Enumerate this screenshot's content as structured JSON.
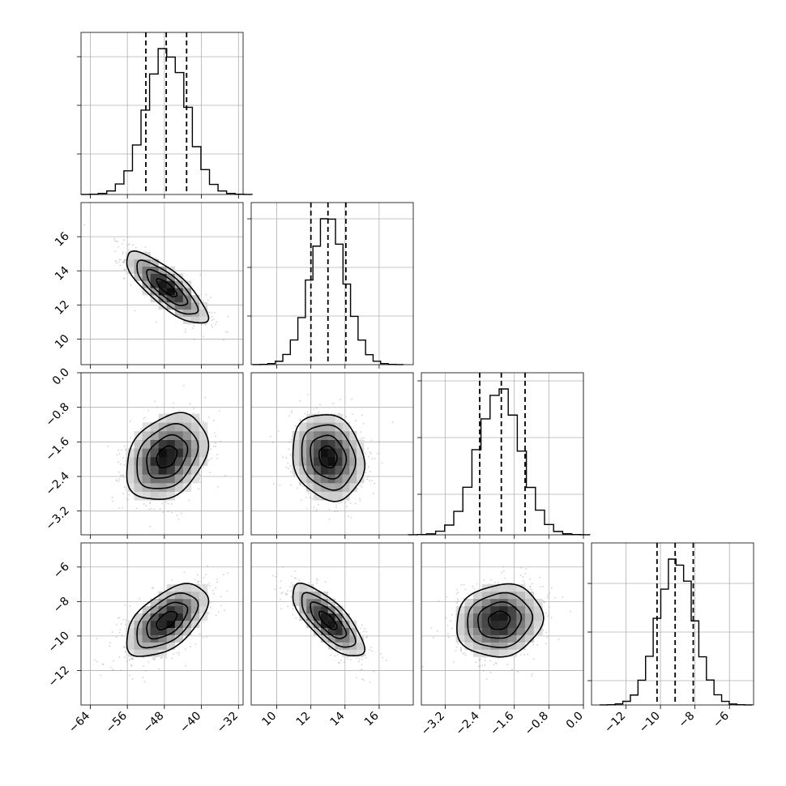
{
  "chart_data": {
    "type": "corner",
    "title": "",
    "grid": true,
    "params": [
      {
        "range": [
          -66,
          -31
        ],
        "ticks": [
          -64,
          -56,
          -48,
          -40,
          -32
        ],
        "tick_labels": [
          "−64",
          "−56",
          "−48",
          "−40",
          "−32"
        ],
        "mean": -47.5,
        "sd": 4.4,
        "quantiles": [
          -52.0,
          -47.6,
          -43.2
        ],
        "yticks_diag": [
          0.25,
          0.55,
          0.85
        ]
      },
      {
        "range": [
          8.5,
          18.0
        ],
        "ticks": [
          10,
          12,
          14,
          16
        ],
        "tick_labels": [
          "10",
          "12",
          "14",
          "16"
        ],
        "mean": 13.0,
        "sd": 1.05,
        "quantiles": [
          12.0,
          13.0,
          14.05
        ],
        "yticks_diag": [
          0.3,
          0.6,
          0.9
        ]
      },
      {
        "range": [
          -3.75,
          0.0
        ],
        "ticks": [
          -3.2,
          -2.4,
          -1.6,
          -0.8,
          0.0
        ],
        "tick_labels": [
          "−3.2",
          "−2.4",
          "−1.6",
          "−0.8",
          "0.0"
        ],
        "mean": -1.95,
        "sd": 0.5,
        "quantiles": [
          -2.4,
          -1.9,
          -1.35
        ],
        "yticks_diag": [
          0.25,
          0.6,
          0.95
        ]
      },
      {
        "range": [
          -14.0,
          -4.6
        ],
        "ticks": [
          -12,
          -10,
          -8,
          -6
        ],
        "tick_labels": [
          "−12",
          "−10",
          "−8",
          "−6"
        ],
        "mean": -9.1,
        "sd": 1.05,
        "quantiles": [
          -10.2,
          -9.15,
          -8.1
        ],
        "yticks_diag": [
          0.15,
          0.45,
          0.75
        ]
      }
    ],
    "correlations": [
      [
        1.0,
        -0.8,
        0.3,
        0.55
      ],
      [
        -0.8,
        1.0,
        -0.15,
        -0.75
      ],
      [
        0.3,
        -0.15,
        1.0,
        0.1
      ],
      [
        0.55,
        -0.75,
        0.1,
        1.0
      ]
    ],
    "contour_levels_sigma": [
      0.5,
      1.0,
      1.5,
      2.0
    ]
  }
}
